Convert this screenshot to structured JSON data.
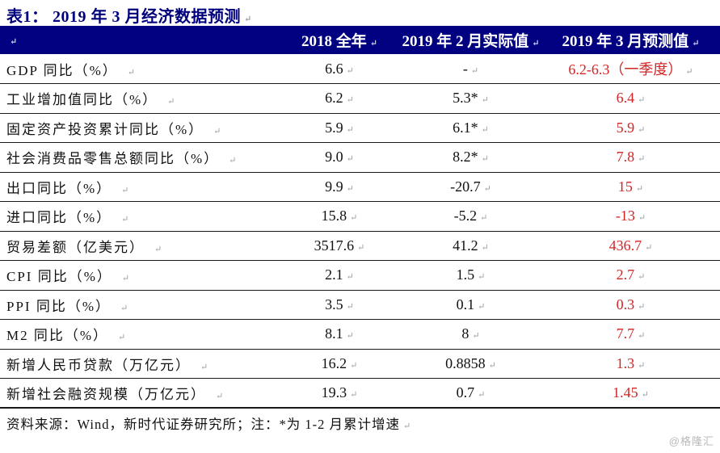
{
  "title": "表1： 2019 年 3 月经济数据预测",
  "marks": {
    "return": "↵"
  },
  "colors": {
    "header_bg": "#000080",
    "title_navy": "#00007d",
    "forecast_red": "#d42424",
    "mark_gray": "#9aa0a6",
    "watermark_gray": "#b9b9b9"
  },
  "table": {
    "headers": [
      "",
      "2018 全年",
      "2019 年 2 月实际值",
      "2019 年 3 月预测值"
    ],
    "rows": [
      {
        "label": "GDP 同比（%）",
        "y2018": "6.6",
        "feb2019": "-",
        "mar2019": "6.2-6.3（一季度）"
      },
      {
        "label": "工业增加值同比（%）",
        "y2018": "6.2",
        "feb2019": "5.3*",
        "mar2019": "6.4"
      },
      {
        "label": "固定资产投资累计同比（%）",
        "y2018": "5.9",
        "feb2019": "6.1*",
        "mar2019": "5.9"
      },
      {
        "label": "社会消费品零售总额同比（%）",
        "y2018": "9.0",
        "feb2019": "8.2*",
        "mar2019": "7.8"
      },
      {
        "label": "出口同比（%）",
        "y2018": "9.9",
        "feb2019": "-20.7",
        "mar2019": "15"
      },
      {
        "label": "进口同比（%）",
        "y2018": "15.8",
        "feb2019": "-5.2",
        "mar2019": "-13"
      },
      {
        "label": "贸易差额（亿美元）",
        "y2018": "3517.6",
        "feb2019": "41.2",
        "mar2019": "436.7"
      },
      {
        "label": "CPI 同比（%）",
        "y2018": "2.1",
        "feb2019": "1.5",
        "mar2019": "2.7"
      },
      {
        "label": "PPI 同比（%）",
        "y2018": "3.5",
        "feb2019": "0.1",
        "mar2019": "0.3"
      },
      {
        "label": "M2 同比（%）",
        "y2018": "8.1",
        "feb2019": "8",
        "mar2019": "7.7"
      },
      {
        "label": "新增人民币贷款（万亿元）",
        "y2018": "16.2",
        "feb2019": "0.8858",
        "mar2019": "1.3"
      },
      {
        "label": "新增社会融资规模（万亿元）",
        "y2018": "19.3",
        "feb2019": "0.7",
        "mar2019": "1.45"
      }
    ]
  },
  "footer": {
    "source": "资料来源：Wind，新时代证券研究所；注：*为 1-2 月累计增速"
  },
  "watermark": "@格隆汇"
}
